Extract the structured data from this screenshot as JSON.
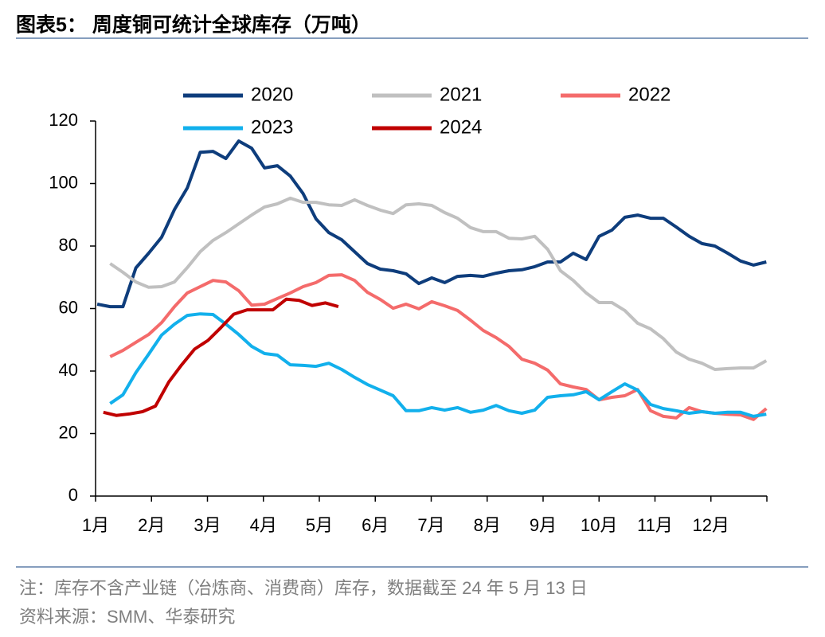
{
  "chart_data": {
    "type": "line",
    "title": "图表5：  周度铜可统计全球库存（万吨）",
    "note": "注：库存不含产业链（冶炼商、消费商）库存，数据截至 24 年 5 月 13 日",
    "source": "资料来源：SMM、华泰研究",
    "ylim": [
      0,
      120
    ],
    "yticks": [
      0,
      20,
      40,
      60,
      80,
      100,
      120
    ],
    "xlim": [
      0,
      12
    ],
    "xticks": [
      {
        "value": 0,
        "label": "1月"
      },
      {
        "value": 1,
        "label": "2月"
      },
      {
        "value": 2,
        "label": "3月"
      },
      {
        "value": 3,
        "label": "4月"
      },
      {
        "value": 4,
        "label": "5月"
      },
      {
        "value": 5,
        "label": "6月"
      },
      {
        "value": 6,
        "label": "7月"
      },
      {
        "value": 7,
        "label": "8月"
      },
      {
        "value": 8,
        "label": "9月"
      },
      {
        "value": 9,
        "label": "10月"
      },
      {
        "value": 10,
        "label": "11月"
      },
      {
        "value": 11,
        "label": "12月"
      }
    ],
    "series": [
      {
        "name": "2020",
        "color": "#0e3d7c",
        "x": [
          0.03,
          0.26,
          0.49,
          0.72,
          0.95,
          1.18,
          1.41,
          1.64,
          1.87,
          2.1,
          2.33,
          2.56,
          2.79,
          3.02,
          3.25,
          3.48,
          3.71,
          3.94,
          4.17,
          4.4,
          4.63,
          4.86,
          5.09,
          5.32,
          5.55,
          5.78,
          6.01,
          6.24,
          6.47,
          6.7,
          6.93,
          7.16,
          7.39,
          7.62,
          7.85,
          8.08,
          8.31,
          8.54,
          8.77,
          9.0,
          9.23,
          9.46,
          9.69,
          9.92,
          10.15,
          10.38,
          10.61,
          10.84,
          11.07,
          11.3,
          11.53,
          11.76,
          11.99
        ],
        "values": [
          61.4,
          60.6,
          60.6,
          73,
          77.7,
          82.8,
          91.7,
          98.6,
          110,
          110.3,
          108,
          113.6,
          111.3,
          105,
          105.7,
          102.4,
          96.8,
          88.7,
          84.3,
          82,
          78.2,
          74.4,
          72.6,
          72.1,
          71.1,
          68,
          69.8,
          68.3,
          70.3,
          70.6,
          70.3,
          71.3,
          72.1,
          72.4,
          73.4,
          74.9,
          74.9,
          77.7,
          75.7,
          83.1,
          85.1,
          89.2,
          89.9,
          88.9,
          88.9,
          86.1,
          83.1,
          80.8,
          80,
          77.7,
          75.2,
          73.9,
          74.9
        ]
      },
      {
        "name": "2021",
        "color": "#c0c0c0",
        "x": [
          0.26,
          0.49,
          0.72,
          0.95,
          1.18,
          1.41,
          1.64,
          1.87,
          2.1,
          2.33,
          2.56,
          2.79,
          3.02,
          3.25,
          3.48,
          3.71,
          3.94,
          4.17,
          4.4,
          4.63,
          4.86,
          5.09,
          5.32,
          5.55,
          5.78,
          6.01,
          6.24,
          6.47,
          6.7,
          6.93,
          7.16,
          7.39,
          7.62,
          7.85,
          8.08,
          8.31,
          8.54,
          8.77,
          9.0,
          9.23,
          9.46,
          9.69,
          9.92,
          10.15,
          10.38,
          10.61,
          10.84,
          11.07,
          11.3,
          11.53,
          11.76,
          11.99
        ],
        "values": [
          74.4,
          71.6,
          68.5,
          66.8,
          67,
          68.5,
          73.1,
          78.2,
          81.8,
          84.3,
          87.1,
          89.9,
          92.5,
          93.5,
          95.3,
          94,
          94,
          93.2,
          93,
          94.8,
          93,
          91.5,
          90.4,
          93.2,
          93.5,
          93,
          90.7,
          88.9,
          85.9,
          84.6,
          84.6,
          82.5,
          82.3,
          83.1,
          79,
          72.1,
          69,
          65,
          61.9,
          61.9,
          59.4,
          55.3,
          53.5,
          50.4,
          46.1,
          43.8,
          42.5,
          40.5,
          40.8,
          41,
          41,
          43.3
        ]
      },
      {
        "name": "2022",
        "color": "#f46b6b",
        "x": [
          0.26,
          0.49,
          0.72,
          0.95,
          1.18,
          1.41,
          1.64,
          1.87,
          2.1,
          2.33,
          2.56,
          2.79,
          3.02,
          3.25,
          3.48,
          3.71,
          3.94,
          4.17,
          4.4,
          4.63,
          4.86,
          5.09,
          5.32,
          5.55,
          5.78,
          6.01,
          6.24,
          6.47,
          6.7,
          6.93,
          7.16,
          7.39,
          7.62,
          7.85,
          8.08,
          8.31,
          8.54,
          8.77,
          9.0,
          9.23,
          9.46,
          9.69,
          9.92,
          10.15,
          10.38,
          10.61,
          10.84,
          11.07,
          11.3,
          11.53,
          11.76,
          11.99
        ],
        "values": [
          44.6,
          46.6,
          49.2,
          51.7,
          55.5,
          60.6,
          65,
          67,
          69,
          68.5,
          65.7,
          61.1,
          61.4,
          63.2,
          65,
          67,
          68.3,
          70.6,
          70.8,
          69,
          65.2,
          62.9,
          60.1,
          61.4,
          59.9,
          62.2,
          60.9,
          59.4,
          56.3,
          53,
          50.7,
          47.9,
          43.8,
          42.5,
          40.3,
          35.9,
          34.9,
          34.1,
          30.8,
          31.6,
          32.1,
          34.1,
          27.3,
          25.5,
          25,
          28.3,
          27,
          26.5,
          26.2,
          26,
          24.5,
          28
        ]
      },
      {
        "name": "2023",
        "color": "#12b0ec",
        "x": [
          0.26,
          0.49,
          0.72,
          0.95,
          1.18,
          1.41,
          1.64,
          1.87,
          2.1,
          2.33,
          2.56,
          2.79,
          3.02,
          3.25,
          3.48,
          3.71,
          3.94,
          4.17,
          4.4,
          4.63,
          4.86,
          5.09,
          5.32,
          5.55,
          5.78,
          6.01,
          6.24,
          6.47,
          6.7,
          6.93,
          7.16,
          7.39,
          7.62,
          7.85,
          8.08,
          8.31,
          8.54,
          8.77,
          9.0,
          9.23,
          9.46,
          9.69,
          9.92,
          10.15,
          10.38,
          10.61,
          10.84,
          11.07,
          11.3,
          11.53,
          11.76,
          11.99
        ],
        "values": [
          29.6,
          32.4,
          39.5,
          45.4,
          51.5,
          55,
          57.8,
          58.3,
          58.1,
          55,
          51.7,
          47.9,
          45.6,
          45.1,
          42,
          41.8,
          41.5,
          42.5,
          40.5,
          38,
          35.7,
          33.9,
          32.1,
          27.3,
          27.3,
          28.3,
          27.5,
          28.3,
          26.8,
          27.5,
          29,
          27.3,
          26.5,
          27.5,
          31.6,
          32.1,
          32.4,
          33.4,
          30.8,
          33.4,
          35.9,
          33.9,
          29.3,
          28,
          27.3,
          26.5,
          27,
          26.5,
          26.8,
          26.8,
          25.5,
          26.2
        ]
      },
      {
        "name": "2024",
        "color": "#c00000",
        "x": [
          0.14,
          0.37,
          0.61,
          0.84,
          1.07,
          1.31,
          1.54,
          1.77,
          2.01,
          2.24,
          2.47,
          2.71,
          2.94,
          3.17,
          3.41,
          3.64,
          3.87,
          4.11,
          4.34
        ],
        "values": [
          26.8,
          25.8,
          26.3,
          27,
          28.8,
          36.5,
          42,
          47,
          49.8,
          53.9,
          58.2,
          59.6,
          59.6,
          59.6,
          63,
          62.6,
          61,
          61.8,
          60.6
        ]
      }
    ]
  }
}
